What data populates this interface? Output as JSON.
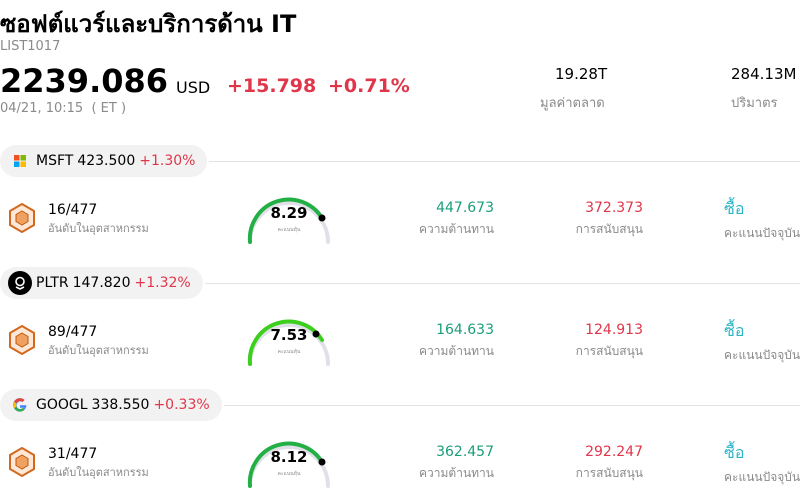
{
  "header": {
    "title": "ซอฟต์แวร์และบริการด้าน IT",
    "code": "LIST1017",
    "price": "2239.086",
    "currency": "USD",
    "change": "+15.798",
    "change_percent": "+0.71%",
    "time": "04/21, 10:15  ( ET )",
    "market_cap": {
      "value": "19.28T",
      "label": "มูลค่าตลาด"
    },
    "volume": {
      "value": "284.13M",
      "label": "ปริมาตร"
    }
  },
  "stocks": [
    {
      "symbol": "MSFT",
      "price": "423.500",
      "change": "+1.30%",
      "rank": "16/477",
      "rank_label": "อันดับในอุตสาหกรรม",
      "score": "8.29",
      "score_label": "คะแนนหุ้น",
      "resistance": "447.673",
      "resistance_label": "ความต้านทาน",
      "support": "372.373",
      "support_label": "การสนับสนุน",
      "rating": "ซื้อ",
      "rating_label": "คะแนนปัจจุบัน"
    },
    {
      "symbol": "PLTR",
      "price": "147.820",
      "change": "+1.32%",
      "rank": "89/477",
      "rank_label": "อันดับในอุตสาหกรรม",
      "score": "7.53",
      "score_label": "คะแนนหุ้น",
      "resistance": "164.633",
      "resistance_label": "ความต้านทาน",
      "support": "124.913",
      "support_label": "การสนับสนุน",
      "rating": "ซื้อ",
      "rating_label": "คะแนนปัจจุบัน"
    },
    {
      "symbol": "GOOGL",
      "price": "338.550",
      "change": "+0.33%",
      "rank": "31/477",
      "rank_label": "อันดับในอุตสาหกรรม",
      "score": "8.12",
      "score_label": "คะแนนหุ้น",
      "resistance": "362.457",
      "resistance_label": "ความต้านทาน",
      "support": "292.247",
      "support_label": "การสนับสนุน",
      "rating": "ซื้อ",
      "rating_label": "คะแนนปัจจุบัน"
    }
  ]
}
